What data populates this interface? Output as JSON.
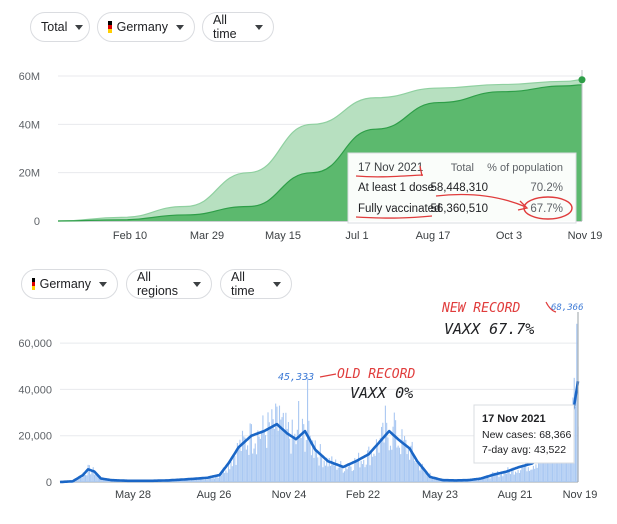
{
  "top_filters": {
    "metric": "Total",
    "country": "Germany",
    "period": "All time"
  },
  "bottom_filters": {
    "country": "Germany",
    "region": "All regions",
    "period": "All time"
  },
  "flag_colors": [
    "#000000",
    "#dd0000",
    "#ffce00"
  ],
  "colors": {
    "light_green": "#b7e0c0",
    "dark_green": "#5cb96e",
    "line_green": "#2e9e48",
    "blue_line": "#1a66c6",
    "blue_bar": "#a9c8f2",
    "red_annot": "#e03c3c",
    "blue_annot": "#3d7ad6"
  },
  "chart_data": [
    {
      "type": "area",
      "ylim": [
        0,
        60000000
      ],
      "yticks": [
        0,
        20000000,
        40000000,
        60000000
      ],
      "ytick_labels": [
        "0",
        "20M",
        "40M",
        "60M"
      ],
      "xtick_labels": [
        "Feb 10",
        "Mar 29",
        "May 15",
        "Jul 1",
        "Aug 17",
        "Oct 3",
        "Nov 19"
      ],
      "series": [
        {
          "name": "At least 1 dose",
          "x": [
            0,
            40,
            80,
            120,
            160,
            200,
            240,
            280,
            320,
            330
          ],
          "values": [
            0,
            1500000,
            6000000,
            20000000,
            40000000,
            51000000,
            55000000,
            56500000,
            57800000,
            58448310
          ]
        },
        {
          "name": "Fully vaccinated",
          "x": [
            0,
            40,
            80,
            120,
            160,
            200,
            240,
            280,
            320,
            330
          ],
          "values": [
            0,
            500000,
            2500000,
            6000000,
            20000000,
            38000000,
            49000000,
            53500000,
            55900000,
            56360510
          ]
        }
      ],
      "tooltip": {
        "date": "17 Nov 2021",
        "col_total": "Total",
        "col_pct": "% of population",
        "rows": [
          {
            "label": "At least 1 dose",
            "total": "58,448,310",
            "pct": "70.2%"
          },
          {
            "label": "Fully vaccinated",
            "total": "56,360,510",
            "pct": "67.7%"
          }
        ]
      }
    },
    {
      "type": "bar",
      "ylim": [
        0,
        70000
      ],
      "yticks": [
        0,
        20000,
        40000,
        60000
      ],
      "ytick_labels": [
        "0",
        "20,000",
        "40,000",
        "60,000"
      ],
      "xtick_labels": [
        "May 28",
        "Aug 26",
        "Nov 24",
        "Feb 22",
        "May 23",
        "Aug 21",
        "Nov 19"
      ],
      "avg_points": [
        [
          0,
          0
        ],
        [
          10,
          300
        ],
        [
          18,
          3000
        ],
        [
          22,
          5500
        ],
        [
          27,
          4500
        ],
        [
          32,
          1500
        ],
        [
          40,
          800
        ],
        [
          55,
          500
        ],
        [
          70,
          500
        ],
        [
          85,
          700
        ],
        [
          100,
          1200
        ],
        [
          115,
          1800
        ],
        [
          125,
          3000
        ],
        [
          132,
          8000
        ],
        [
          140,
          15000
        ],
        [
          150,
          20000
        ],
        [
          160,
          22000
        ],
        [
          170,
          25000
        ],
        [
          178,
          21000
        ],
        [
          185,
          18500
        ],
        [
          192,
          22000
        ],
        [
          200,
          14000
        ],
        [
          210,
          9000
        ],
        [
          222,
          6500
        ],
        [
          232,
          9000
        ],
        [
          242,
          12000
        ],
        [
          250,
          17000
        ],
        [
          258,
          22000
        ],
        [
          266,
          18000
        ],
        [
          274,
          14500
        ],
        [
          280,
          9000
        ],
        [
          290,
          2200
        ],
        [
          300,
          800
        ],
        [
          310,
          700
        ],
        [
          320,
          800
        ],
        [
          330,
          1500
        ],
        [
          340,
          3200
        ],
        [
          350,
          4500
        ],
        [
          360,
          6500
        ],
        [
          370,
          8000
        ],
        [
          380,
          12000
        ],
        [
          390,
          15000
        ],
        [
          398,
          21000
        ],
        [
          403,
          33000
        ],
        [
          406,
          43522
        ]
      ],
      "peaks": [
        [
          0,
          0
        ],
        [
          18,
          4000
        ],
        [
          23,
          7000
        ],
        [
          30,
          2500
        ],
        [
          40,
          1200
        ],
        [
          130,
          5000
        ],
        [
          150,
          25000
        ],
        [
          172,
          33000
        ],
        [
          187,
          35000
        ],
        [
          194,
          45333
        ],
        [
          200,
          18000
        ],
        [
          255,
          33000
        ],
        [
          262,
          30000
        ],
        [
          290,
          4000
        ],
        [
          380,
          14000
        ],
        [
          395,
          26000
        ],
        [
          403,
          45000
        ],
        [
          405,
          68366
        ]
      ],
      "tooltip": {
        "date": "17 Nov 2021",
        "cases_label": "New cases:",
        "cases": "68,366",
        "avg_label": "7-day avg:",
        "avg": "43,522"
      },
      "annotations": {
        "new_record": "NEW RECORD",
        "new_record_value": "68,366",
        "new_vaxx": "VAXX 67.7%",
        "old_record": "OLD RECORD",
        "old_record_value": "45,333",
        "old_vaxx": "VAXX 0%"
      }
    }
  ]
}
